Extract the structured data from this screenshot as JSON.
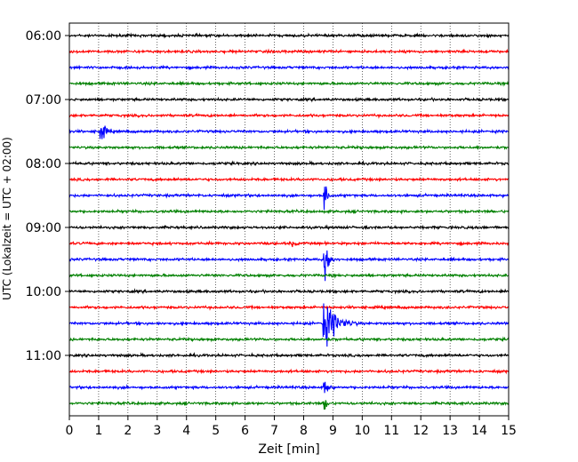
{
  "chart_data": {
    "type": "line",
    "xlabel": "Zeit  [min]",
    "ylabel": "UTC (Lokalzeit = UTC + 02:00)",
    "xlim": [
      0,
      15
    ],
    "x_ticks": [
      "0",
      "1",
      "2",
      "3",
      "4",
      "5",
      "6",
      "7",
      "8",
      "9",
      "10",
      "11",
      "12",
      "13",
      "14",
      "15"
    ],
    "y_ticks": [
      "06:00",
      "07:00",
      "08:00",
      "09:00",
      "10:00",
      "11:00"
    ],
    "grid_x": true,
    "trace_interval_minutes": 15,
    "trace_colors": [
      "#000000",
      "#ff0000",
      "#0000ff",
      "#008000"
    ],
    "traces": [
      {
        "start": "06:00",
        "events": []
      },
      {
        "start": "06:15",
        "events": []
      },
      {
        "start": "06:30",
        "events": []
      },
      {
        "start": "06:45",
        "events": []
      },
      {
        "start": "07:00",
        "events": []
      },
      {
        "start": "07:15",
        "events": []
      },
      {
        "start": "07:30",
        "events": [
          {
            "t": 1.05,
            "amp": 14,
            "dur": 0.5
          }
        ]
      },
      {
        "start": "07:45",
        "events": []
      },
      {
        "start": "08:00",
        "events": []
      },
      {
        "start": "08:15",
        "events": []
      },
      {
        "start": "08:30",
        "events": [
          {
            "t": 8.7,
            "amp": 28,
            "dur": 0.25
          }
        ]
      },
      {
        "start": "08:45",
        "events": []
      },
      {
        "start": "09:00",
        "events": []
      },
      {
        "start": "09:15",
        "events": [
          {
            "t": 7.6,
            "amp": 5,
            "dur": 0.5
          }
        ]
      },
      {
        "start": "09:30",
        "events": [
          {
            "t": 8.7,
            "amp": 35,
            "dur": 0.4
          }
        ]
      },
      {
        "start": "09:45",
        "events": []
      },
      {
        "start": "10:00",
        "events": []
      },
      {
        "start": "10:15",
        "events": []
      },
      {
        "start": "10:30",
        "events": [
          {
            "t": 8.65,
            "amp": 30,
            "dur": 1.3
          }
        ]
      },
      {
        "start": "10:45",
        "events": []
      },
      {
        "start": "11:00",
        "events": []
      },
      {
        "start": "11:15",
        "events": []
      },
      {
        "start": "11:30",
        "events": [
          {
            "t": 8.7,
            "amp": 18,
            "dur": 0.35
          }
        ]
      },
      {
        "start": "11:45",
        "events": [
          {
            "t": 8.7,
            "amp": 14,
            "dur": 0.3
          }
        ]
      }
    ]
  }
}
